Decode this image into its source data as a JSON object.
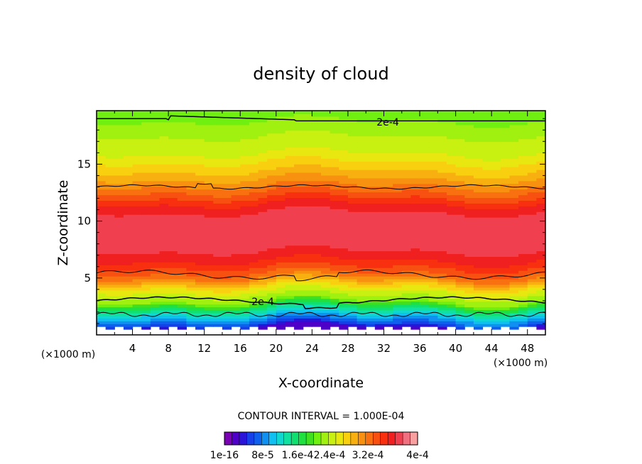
{
  "chart_data": {
    "type": "heatmap",
    "title": "density of cloud",
    "xlabel": "X-coordinate",
    "ylabel": "Z-coordinate",
    "x_unit_left": "(×1000 m)",
    "x_unit_right": "(×1000 m)",
    "xlim": [
      0,
      50
    ],
    "ylim": [
      0,
      19.7
    ],
    "x_ticks": [
      4,
      8,
      12,
      16,
      20,
      24,
      28,
      32,
      36,
      40,
      44,
      48
    ],
    "y_ticks": [
      5,
      10,
      15
    ],
    "contour_interval_text": "CONTOUR INTERVAL = 1.000E-04",
    "contour_labels": [
      "2e-4",
      "2e-4"
    ],
    "colorbar_tick_labels": [
      "1e-16",
      "8e-5",
      "1.6e-4",
      "2.4e-4",
      "3.2e-4",
      "4e-4"
    ],
    "colorbar_range": [
      0,
      0.0004
    ],
    "colorbar_colors": [
      "#7a00b4",
      "#4e00c8",
      "#2a14d8",
      "#1840e8",
      "#1060f0",
      "#1090f0",
      "#10c0f0",
      "#10d8d0",
      "#10e0a0",
      "#10e070",
      "#20e040",
      "#40e020",
      "#70f010",
      "#a0f010",
      "#c8f010",
      "#e8e810",
      "#f8d010",
      "#f8b010",
      "#f89010",
      "#f87010",
      "#f85010",
      "#f83010",
      "#f02020",
      "#f04050",
      "#f07080",
      "#f8a0a0"
    ],
    "field_profile_z": [
      0.6,
      1.0,
      1.5,
      2.0,
      2.6,
      3.0,
      3.6,
      4.3,
      5.0,
      5.5,
      6.2,
      7.0,
      8.0,
      9.5,
      10.5,
      11.5,
      12.5,
      13.2,
      14.0,
      15.0,
      16.0,
      17.0,
      18.0,
      18.8,
      19.7
    ],
    "field_profile_value": [
      2e-05,
      6e-05,
      9e-05,
      0.00012,
      0.00016,
      0.0002,
      0.00022,
      0.00025,
      0.00029,
      0.00031,
      0.00033,
      0.00035,
      0.00036,
      0.000365,
      0.00036,
      0.00034,
      0.00031,
      0.00029,
      0.00027,
      0.00025,
      0.00023,
      0.00022,
      0.00021,
      0.0002,
      0.00019
    ]
  }
}
